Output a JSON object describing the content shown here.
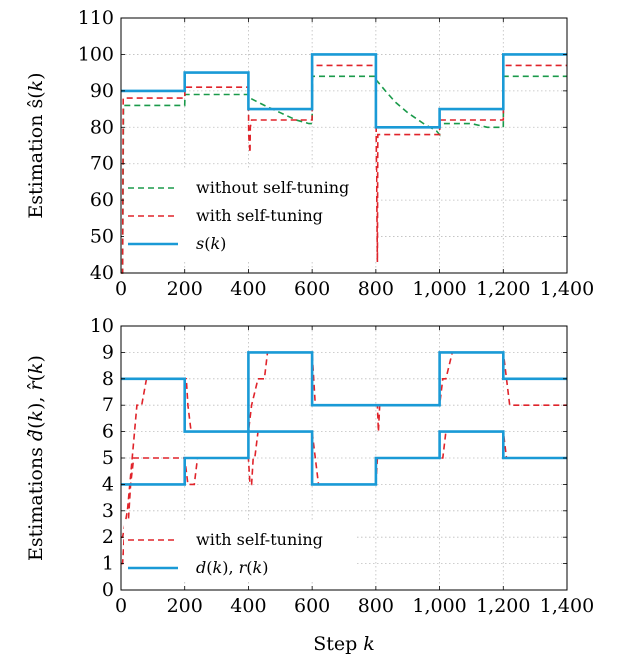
{
  "colors": {
    "s_true": "#1a9ad6",
    "with_tuning": "#e0232a",
    "without_tuning": "#1a9a4a",
    "grid": "#bdbdbd"
  },
  "chart_data": [
    {
      "type": "line",
      "ylabel": "Estimation ŝ(k)",
      "xlabel": "",
      "xlim": [
        0,
        1400
      ],
      "ylim": [
        40,
        110
      ],
      "xticks": [
        "0",
        "200",
        "400",
        "600",
        "800",
        "1,000",
        "1,200",
        "1,400"
      ],
      "yticks": [
        "40",
        "50",
        "60",
        "70",
        "80",
        "90",
        "100",
        "110"
      ],
      "grid": true,
      "legend_position": "bottom-left",
      "series": [
        {
          "name": "without self-tuning",
          "style": "dashed",
          "color_key": "without_tuning",
          "x": [
            0,
            5,
            8,
            200,
            201,
            400,
            405,
            450,
            500,
            550,
            590,
            600,
            601,
            800,
            801,
            830,
            860,
            900,
            950,
            990,
            1000,
            1001,
            1100,
            1150,
            1199,
            1200,
            1201,
            1400
          ],
          "y": [
            40,
            40,
            86,
            86,
            89,
            89,
            88,
            86,
            84,
            82,
            81,
            81,
            94,
            94,
            93,
            90,
            87,
            84,
            81,
            79,
            78,
            81,
            81,
            80,
            80,
            80,
            94,
            94
          ]
        },
        {
          "name": "with self-tuning",
          "style": "dashed",
          "color_key": "with_tuning",
          "x": [
            0,
            5,
            7,
            200,
            201,
            400,
            401,
            405,
            406,
            410,
            600,
            601,
            800,
            801,
            805,
            806,
            810,
            1000,
            1001,
            1200,
            1201,
            1400
          ],
          "y": [
            40,
            40,
            88,
            88,
            91,
            91,
            78,
            73,
            80,
            82,
            82,
            97,
            97,
            78,
            43,
            78,
            78,
            78,
            82,
            82,
            97,
            97
          ]
        },
        {
          "name": "s(k)",
          "style": "solid",
          "color_key": "s_true",
          "x": [
            0,
            200,
            200,
            400,
            400,
            600,
            600,
            800,
            800,
            1000,
            1000,
            1200,
            1200,
            1400
          ],
          "y": [
            90,
            90,
            95,
            95,
            85,
            85,
            100,
            100,
            80,
            80,
            85,
            85,
            100,
            100
          ]
        }
      ]
    },
    {
      "type": "line",
      "ylabel": "Estimations d̂(k), r̂(k)",
      "xlabel": "Step k",
      "xlim": [
        0,
        1400
      ],
      "ylim": [
        0,
        10
      ],
      "xticks": [
        "0",
        "200",
        "400",
        "600",
        "800",
        "1,000",
        "1,200",
        "1,400"
      ],
      "yticks": [
        "0",
        "1",
        "2",
        "3",
        "4",
        "5",
        "6",
        "7",
        "8",
        "9",
        "10"
      ],
      "grid": true,
      "legend_position": "bottom-left",
      "series": [
        {
          "name": "with self-tuning",
          "style": "dashed",
          "color_key": "with_tuning",
          "group": "d_hat",
          "x": [
            0,
            5,
            10,
            20,
            30,
            40,
            200,
            210,
            220,
            230,
            240,
            250,
            400,
            405,
            410,
            415,
            420,
            430,
            600,
            610,
            620,
            800,
            805,
            810,
            815,
            820,
            1000,
            1010,
            1020,
            1030,
            1040,
            1200,
            1210,
            1220,
            1400
          ],
          "y": [
            1,
            1,
            2,
            2,
            4,
            5,
            5,
            4,
            4,
            4,
            5,
            5,
            5,
            4,
            4,
            5,
            5,
            6,
            6,
            5,
            4,
            4,
            5,
            5,
            5,
            5,
            5,
            5,
            6,
            6,
            6,
            6,
            5,
            5,
            5
          ]
        },
        {
          "name": "",
          "style": "dashed",
          "color_key": "with_tuning",
          "group": "r_hat",
          "x": [
            0,
            5,
            20,
            35,
            50,
            65,
            80,
            200,
            205,
            210,
            220,
            400,
            410,
            430,
            450,
            460,
            600,
            605,
            610,
            800,
            805,
            808,
            812,
            1000,
            1010,
            1020,
            1040,
            1050,
            1200,
            1210,
            1220,
            1400
          ],
          "y": [
            2,
            2,
            3,
            5,
            7,
            7,
            8,
            8,
            8,
            7,
            6,
            6,
            7,
            8,
            8,
            9,
            9,
            8,
            7,
            7,
            7,
            6,
            7,
            7,
            8,
            8,
            9,
            9,
            9,
            8,
            7,
            7
          ]
        },
        {
          "name": "d(k), r(k)",
          "style": "solid",
          "color_key": "s_true",
          "group": "d_true",
          "x": [
            0,
            200,
            200,
            400,
            400,
            600,
            600,
            800,
            800,
            1000,
            1000,
            1200,
            1200,
            1400
          ],
          "y": [
            4,
            4,
            5,
            5,
            6,
            6,
            4,
            4,
            5,
            5,
            6,
            6,
            5,
            5
          ]
        },
        {
          "name": "",
          "style": "solid",
          "color_key": "s_true",
          "group": "r_true",
          "x": [
            0,
            200,
            200,
            400,
            400,
            600,
            600,
            1000,
            1000,
            1200,
            1200,
            1400
          ],
          "y": [
            8,
            8,
            6,
            6,
            9,
            9,
            7,
            7,
            9,
            9,
            8,
            8
          ]
        }
      ]
    }
  ]
}
